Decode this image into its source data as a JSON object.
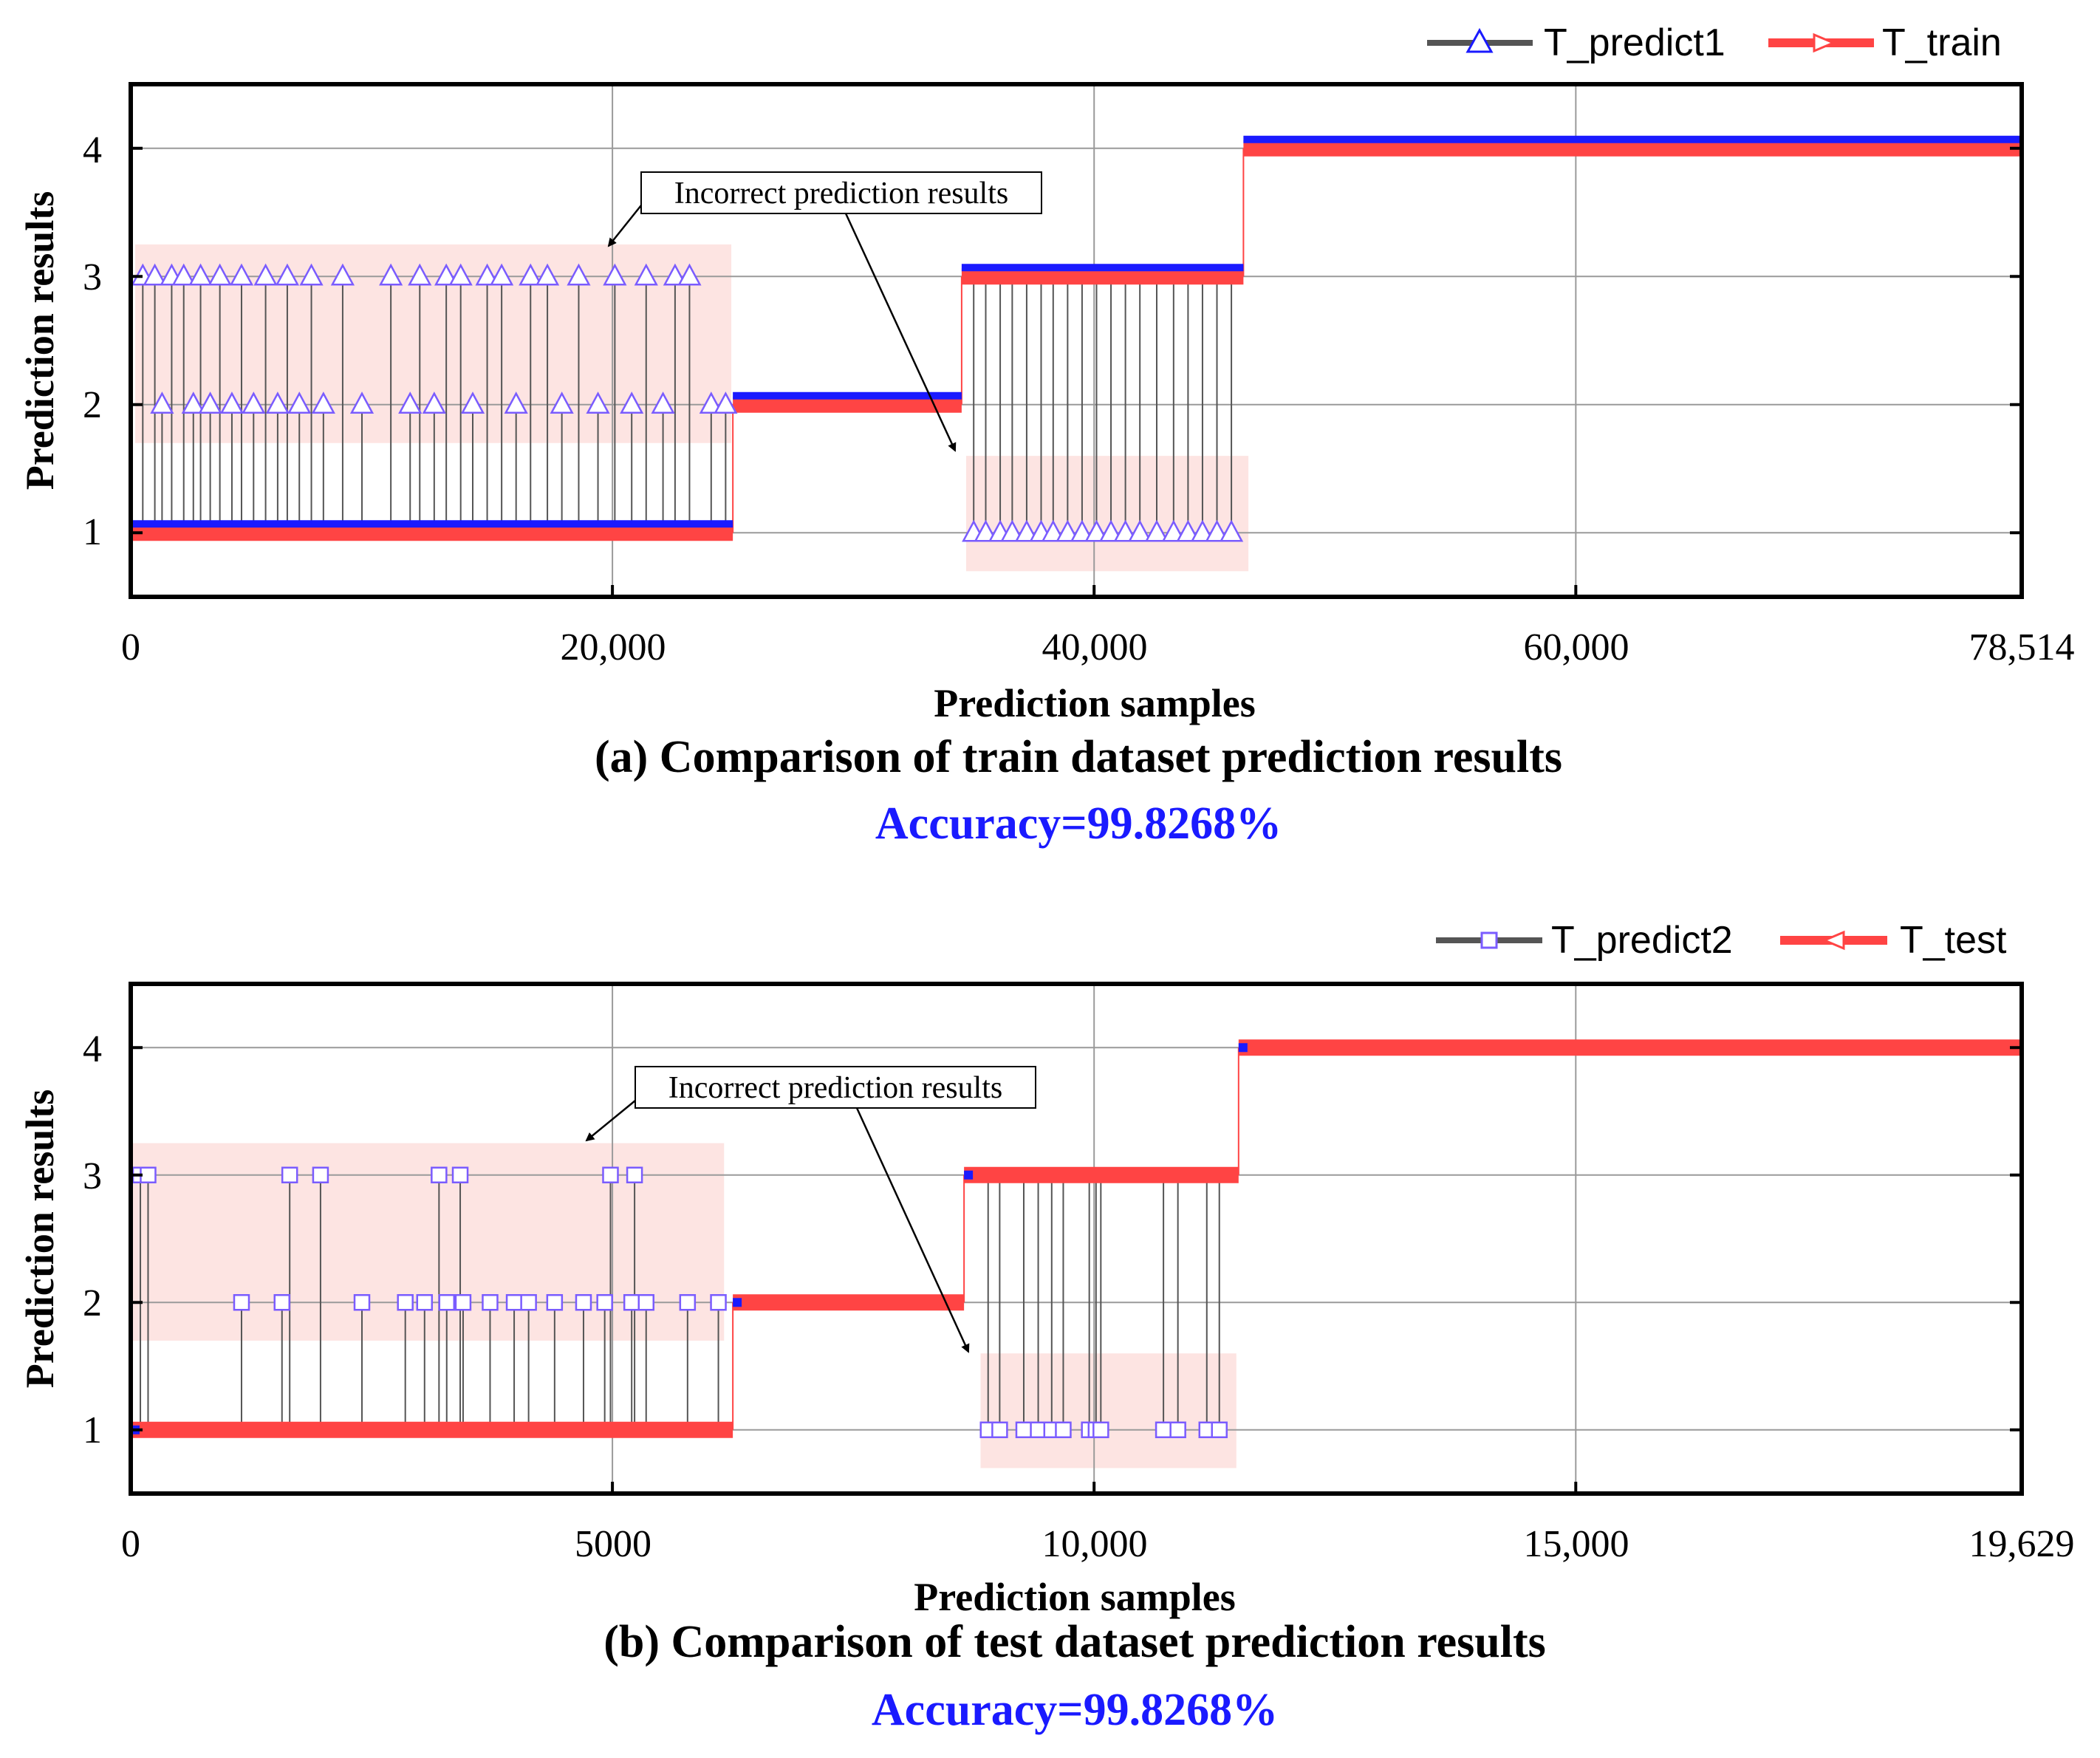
{
  "colors": {
    "predict": "#1a1aff",
    "truth": "#ff4444",
    "marker": "#7a5cff",
    "stem": "#555555",
    "highlight": "#fde4e2",
    "accuracy": "#1a1aff"
  },
  "chart_data": [
    {
      "type": "line",
      "panel": "a",
      "caption": "(a) Comparison of train dataset prediction results",
      "accuracy": "Accuracy=99.8268%",
      "xlabel": "Prediction samples",
      "ylabel": "Prediction results",
      "xlim": [
        0,
        78514
      ],
      "ylim": [
        0.5,
        4.5
      ],
      "xticks": [
        0,
        20000,
        40000,
        60000,
        78514
      ],
      "xtick_labels": [
        "0",
        "20,000",
        "40,000",
        "60,000",
        "78,514"
      ],
      "yticks": [
        1,
        2,
        3,
        4
      ],
      "ytick_labels": [
        "1",
        "2",
        "3",
        "4"
      ],
      "legend": [
        {
          "name": "T_predict1",
          "marker": "triangle-up"
        },
        {
          "name": "T_train",
          "marker": "triangle-right"
        }
      ],
      "annotation": "Incorrect prediction results",
      "series": [
        {
          "name": "T_train",
          "segments": [
            {
              "x0": 0,
              "x1": 25000,
              "y": 1
            },
            {
              "x0": 25000,
              "x1": 34500,
              "y": 2
            },
            {
              "x0": 34500,
              "x1": 46200,
              "y": 3
            },
            {
              "x0": 46200,
              "x1": 78514,
              "y": 4
            }
          ]
        },
        {
          "name": "T_predict1",
          "errors": [
            {
              "x": 500,
              "y": 3
            },
            {
              "x": 1000,
              "y": 3
            },
            {
              "x": 1300,
              "y": 2
            },
            {
              "x": 1700,
              "y": 3
            },
            {
              "x": 2200,
              "y": 3
            },
            {
              "x": 2600,
              "y": 2
            },
            {
              "x": 2900,
              "y": 3
            },
            {
              "x": 3300,
              "y": 2
            },
            {
              "x": 3700,
              "y": 3
            },
            {
              "x": 4200,
              "y": 2
            },
            {
              "x": 4600,
              "y": 3
            },
            {
              "x": 5100,
              "y": 2
            },
            {
              "x": 5600,
              "y": 3
            },
            {
              "x": 6100,
              "y": 2
            },
            {
              "x": 6500,
              "y": 3
            },
            {
              "x": 7000,
              "y": 2
            },
            {
              "x": 7500,
              "y": 3
            },
            {
              "x": 8000,
              "y": 2
            },
            {
              "x": 8800,
              "y": 3
            },
            {
              "x": 9600,
              "y": 2
            },
            {
              "x": 10800,
              "y": 3
            },
            {
              "x": 11600,
              "y": 2
            },
            {
              "x": 12000,
              "y": 3
            },
            {
              "x": 12600,
              "y": 2
            },
            {
              "x": 13100,
              "y": 3
            },
            {
              "x": 13700,
              "y": 3
            },
            {
              "x": 14200,
              "y": 2
            },
            {
              "x": 14800,
              "y": 3
            },
            {
              "x": 15400,
              "y": 3
            },
            {
              "x": 16000,
              "y": 2
            },
            {
              "x": 16600,
              "y": 3
            },
            {
              "x": 17300,
              "y": 3
            },
            {
              "x": 17900,
              "y": 2
            },
            {
              "x": 18600,
              "y": 3
            },
            {
              "x": 19400,
              "y": 2
            },
            {
              "x": 20100,
              "y": 3
            },
            {
              "x": 20800,
              "y": 2
            },
            {
              "x": 21400,
              "y": 3
            },
            {
              "x": 22100,
              "y": 2
            },
            {
              "x": 22600,
              "y": 3
            },
            {
              "x": 23200,
              "y": 3
            },
            {
              "x": 24100,
              "y": 2
            },
            {
              "x": 24700,
              "y": 2
            },
            {
              "x": 35000,
              "y": 1
            },
            {
              "x": 35500,
              "y": 1
            },
            {
              "x": 36100,
              "y": 1
            },
            {
              "x": 36600,
              "y": 1
            },
            {
              "x": 37200,
              "y": 1
            },
            {
              "x": 37800,
              "y": 1
            },
            {
              "x": 38300,
              "y": 1
            },
            {
              "x": 38900,
              "y": 1
            },
            {
              "x": 39500,
              "y": 1
            },
            {
              "x": 40100,
              "y": 1
            },
            {
              "x": 40700,
              "y": 1
            },
            {
              "x": 41300,
              "y": 1
            },
            {
              "x": 41900,
              "y": 1
            },
            {
              "x": 42600,
              "y": 1
            },
            {
              "x": 43300,
              "y": 1
            },
            {
              "x": 43900,
              "y": 1
            },
            {
              "x": 44500,
              "y": 1
            },
            {
              "x": 45100,
              "y": 1
            },
            {
              "x": 45700,
              "y": 1
            }
          ]
        }
      ]
    },
    {
      "type": "line",
      "panel": "b",
      "caption": "(b) Comparison of test dataset prediction results",
      "accuracy": "Accuracy=99.8268%",
      "xlabel": "Prediction samples",
      "ylabel": "Prediction results",
      "xlim": [
        0,
        19629
      ],
      "ylim": [
        0.5,
        4.5
      ],
      "xticks": [
        0,
        5000,
        10000,
        15000,
        19629
      ],
      "xtick_labels": [
        "0",
        "5000",
        "10,000",
        "15,000",
        "19,629"
      ],
      "yticks": [
        1,
        2,
        3,
        4
      ],
      "ytick_labels": [
        "1",
        "2",
        "3",
        "4"
      ],
      "legend": [
        {
          "name": "T_predict2",
          "marker": "square"
        },
        {
          "name": "T_test",
          "marker": "triangle-left"
        }
      ],
      "annotation": "Incorrect prediction results",
      "series": [
        {
          "name": "T_test",
          "segments": [
            {
              "x0": 0,
              "x1": 6250,
              "y": 1
            },
            {
              "x0": 6250,
              "x1": 8650,
              "y": 2
            },
            {
              "x0": 8650,
              "x1": 11500,
              "y": 3
            },
            {
              "x0": 11500,
              "x1": 19629,
              "y": 4
            }
          ]
        },
        {
          "name": "T_predict2",
          "errors": [
            {
              "x": 100,
              "y": 3
            },
            {
              "x": 180,
              "y": 3
            },
            {
              "x": 1150,
              "y": 2
            },
            {
              "x": 1570,
              "y": 2
            },
            {
              "x": 1650,
              "y": 3
            },
            {
              "x": 1970,
              "y": 3
            },
            {
              "x": 2400,
              "y": 2
            },
            {
              "x": 2850,
              "y": 2
            },
            {
              "x": 3050,
              "y": 2
            },
            {
              "x": 3200,
              "y": 3
            },
            {
              "x": 3280,
              "y": 2
            },
            {
              "x": 3420,
              "y": 3
            },
            {
              "x": 3450,
              "y": 2
            },
            {
              "x": 3730,
              "y": 2
            },
            {
              "x": 3980,
              "y": 2
            },
            {
              "x": 4130,
              "y": 2
            },
            {
              "x": 4400,
              "y": 2
            },
            {
              "x": 4700,
              "y": 2
            },
            {
              "x": 4920,
              "y": 2
            },
            {
              "x": 4980,
              "y": 3
            },
            {
              "x": 5200,
              "y": 2
            },
            {
              "x": 5230,
              "y": 3
            },
            {
              "x": 5350,
              "y": 2
            },
            {
              "x": 5780,
              "y": 2
            },
            {
              "x": 6100,
              "y": 2
            },
            {
              "x": 8900,
              "y": 1
            },
            {
              "x": 9020,
              "y": 1
            },
            {
              "x": 9270,
              "y": 1
            },
            {
              "x": 9420,
              "y": 1
            },
            {
              "x": 9560,
              "y": 1
            },
            {
              "x": 9680,
              "y": 1
            },
            {
              "x": 9950,
              "y": 1
            },
            {
              "x": 10020,
              "y": 1
            },
            {
              "x": 10070,
              "y": 1
            },
            {
              "x": 10720,
              "y": 1
            },
            {
              "x": 10870,
              "y": 1
            },
            {
              "x": 11170,
              "y": 1
            },
            {
              "x": 11300,
              "y": 1
            }
          ]
        }
      ]
    }
  ]
}
